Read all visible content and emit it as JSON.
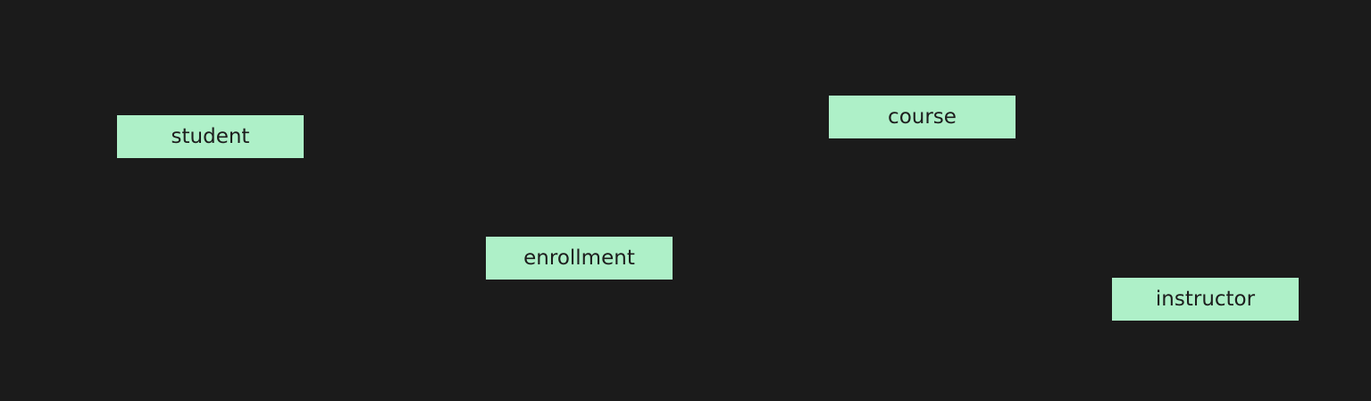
{
  "diagram": {
    "background_color": "#1b1b1b",
    "node_fill_color": "#aef0c8",
    "node_text_color": "#1d1d1d",
    "nodes": [
      {
        "id": "student",
        "label": "student"
      },
      {
        "id": "course",
        "label": "course"
      },
      {
        "id": "enrollment",
        "label": "enrollment"
      },
      {
        "id": "instructor",
        "label": "instructor"
      }
    ]
  }
}
